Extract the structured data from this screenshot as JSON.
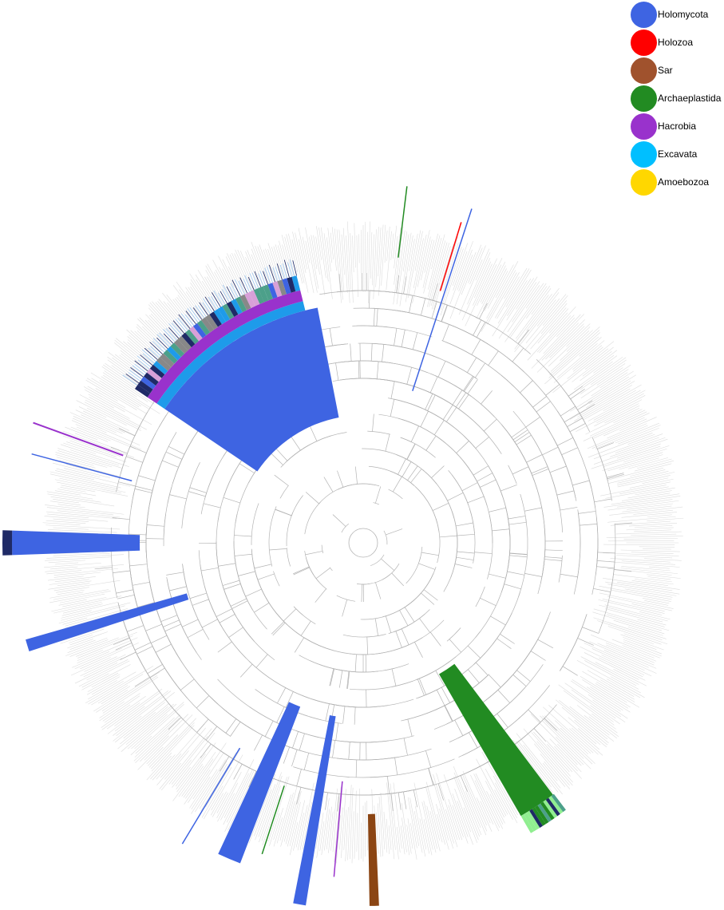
{
  "legend": {
    "items": [
      {
        "label": "Holomycota",
        "color": "#3E64E2"
      },
      {
        "label": "Holozoa",
        "color": "#FF0000"
      },
      {
        "label": "Sar",
        "color": "#A0522D"
      },
      {
        "label": "Archaeplastida",
        "color": "#228B22"
      },
      {
        "label": "Hacrobia",
        "color": "#9932CC"
      },
      {
        "label": "Excavata",
        "color": "#00BFFF"
      },
      {
        "label": "Amoebozoa",
        "color": "#FFD700"
      }
    ]
  },
  "colors": {
    "branch": "#DCDCDC",
    "branch_inner": "#B4B4B4",
    "holomycota": "#3E64E2",
    "holozoa": "#FF0000",
    "sar": "#8B4513",
    "archaeplastida": "#228B22",
    "hacrobia": "#9932CC",
    "excavata": "#1E9BEA",
    "dark_navy": "#1F2A66",
    "teal": "#4CA08A",
    "gray": "#888888",
    "light_green": "#90EE90",
    "pink": "#D8A0D8",
    "light_blue": "#A0C8F0"
  }
}
